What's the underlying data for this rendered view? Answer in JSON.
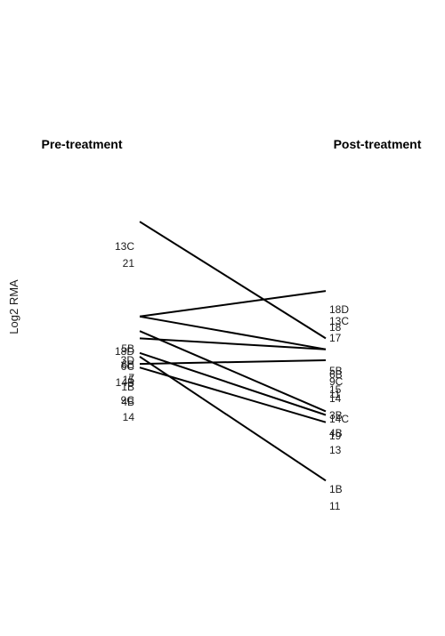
{
  "chart_data": {
    "type": "line",
    "title": "",
    "ylabel": "Log2 RMA",
    "ylim": [
      0,
      100
    ],
    "grid": false,
    "x": [
      "Pre-treatment",
      "Post-treatment"
    ],
    "series": [
      {
        "name": "13C",
        "values": [
          88,
          56
        ]
      },
      {
        "name": "18D",
        "values": [
          62,
          69
        ]
      },
      {
        "name": "5B",
        "values": [
          62,
          53
        ]
      },
      {
        "name": "3D",
        "values": [
          58,
          36
        ]
      },
      {
        "name": "6C",
        "values": [
          56,
          53
        ]
      },
      {
        "name": "4B",
        "values": [
          52,
          35
        ]
      },
      {
        "name": "1B",
        "values": [
          51,
          17
        ]
      },
      {
        "name": "15",
        "values": [
          49,
          50
        ]
      },
      {
        "name": "9C",
        "values": [
          48,
          33
        ]
      }
    ],
    "pre_labels": [
      "13C",
      "21",
      "5B",
      "18D",
      "3D",
      "6B",
      "6C",
      "7",
      "15",
      "14B",
      "1B",
      "9C",
      "4B",
      "14"
    ],
    "post_labels": [
      "18D",
      "13C",
      "18",
      "17",
      "5B",
      "6B",
      "9C",
      "15",
      "11",
      "14",
      "3B",
      "14C",
      "4B",
      "19",
      "13",
      "1B",
      "11"
    ]
  }
}
